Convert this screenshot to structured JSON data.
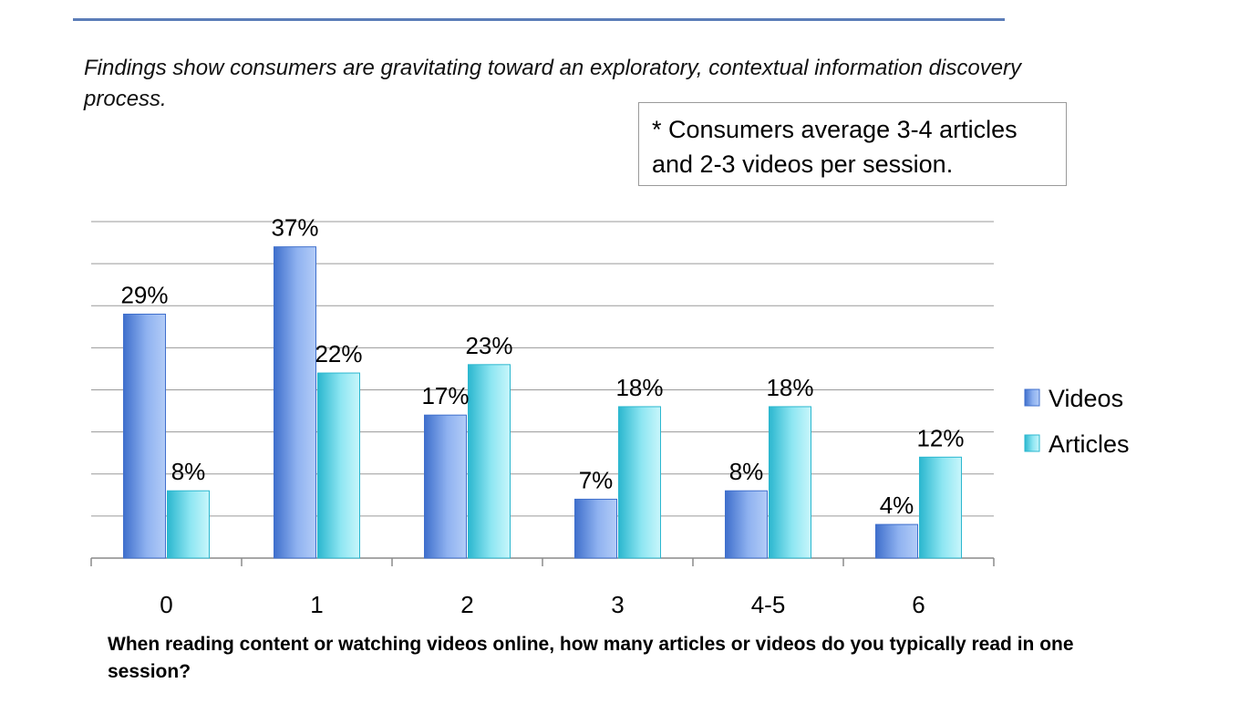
{
  "intro_text": "Findings show consumers are gravitating toward an exploratory, contextual information discovery process.",
  "note": "* Consumers average 3-4 articles and 2-3 videos per session.",
  "question": "When reading content or watching videos online, how many articles or videos do you typically read in one session?",
  "colors": {
    "rule": "#5b7db8",
    "videos_light": "#a8c4f5",
    "videos_dark": "#3f6fcc",
    "articles_light": "#bff3fa",
    "articles_dark": "#2bb7cf",
    "grid": "#9a9a9a"
  },
  "chart_data": {
    "type": "bar",
    "categories": [
      "0",
      "1",
      "2",
      "3",
      "4-5",
      "6"
    ],
    "series": [
      {
        "name": "Videos",
        "values": [
          29,
          37,
          17,
          7,
          8,
          4
        ],
        "labels": [
          "29%",
          "37%",
          "17%",
          "7%",
          "8%",
          "4%"
        ]
      },
      {
        "name": "Articles",
        "values": [
          8,
          22,
          23,
          18,
          18,
          12
        ],
        "labels": [
          "8%",
          "22%",
          "23%",
          "18%",
          "18%",
          "12%"
        ]
      }
    ],
    "ylim": [
      0,
      40
    ],
    "grid": true,
    "legend": "right"
  }
}
